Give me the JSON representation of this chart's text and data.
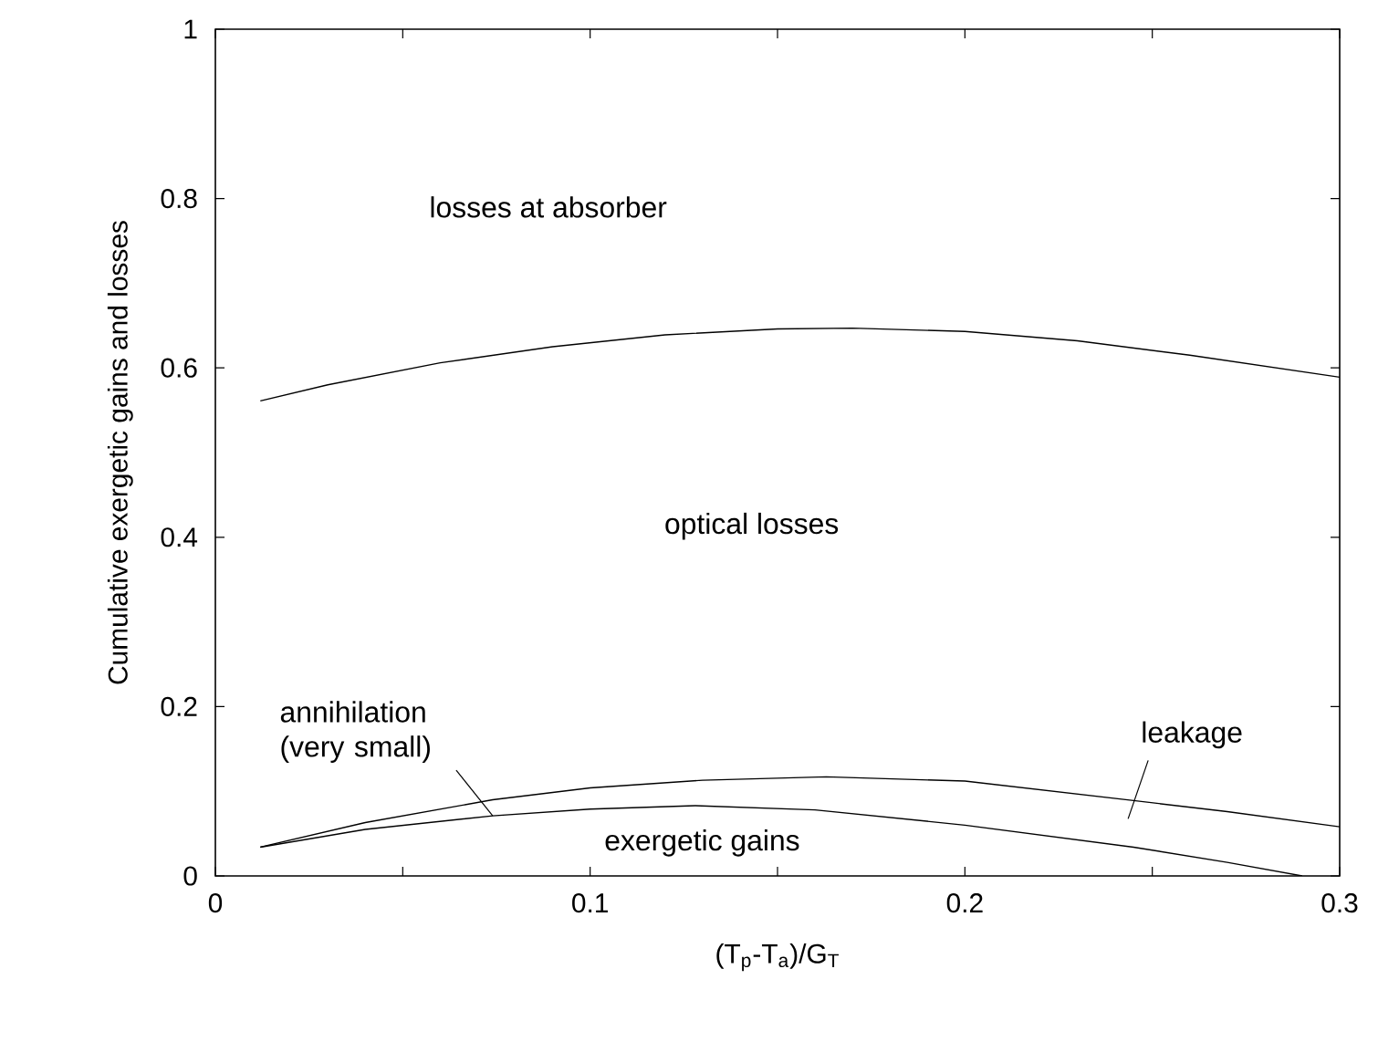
{
  "chart_data": {
    "type": "line",
    "xlabel": "(T$_{p}$-T$_{a}$)/G$_{T}$",
    "ylabel": "Cumulative exergetic gains and losses",
    "xlim": [
      0,
      0.3
    ],
    "ylim": [
      0,
      1
    ],
    "xticks": [
      0,
      {
        "value": 0.05,
        "label": null
      },
      0.1,
      {
        "value": 0.15,
        "label": null
      },
      0.2,
      {
        "value": 0.25,
        "label": null
      },
      0.3
    ],
    "yticks": [
      0,
      0.2,
      0.4,
      0.6,
      0.8,
      1
    ],
    "marker": "none",
    "line_style": "solid",
    "grid": false,
    "series": [
      {
        "color": "#000000",
        "x": [
          0.012,
          0.03,
          0.06,
          0.09,
          0.12,
          0.15,
          0.17,
          0.2,
          0.23,
          0.26,
          0.3
        ],
        "values": [
          0.561,
          0.58,
          0.606,
          0.625,
          0.639,
          0.646,
          0.647,
          0.643,
          0.632,
          0.615,
          0.589
        ]
      },
      {
        "color": "#000000",
        "x": [
          0.012,
          0.04,
          0.074,
          0.1,
          0.13,
          0.163,
          0.2,
          0.245,
          0.27,
          0.3
        ],
        "values": [
          0.034,
          0.063,
          0.09,
          0.104,
          0.113,
          0.117,
          0.112,
          0.089,
          0.076,
          0.058
        ]
      },
      {
        "color": "#000000",
        "x": [
          0.012,
          0.04,
          0.074,
          0.1,
          0.128,
          0.16,
          0.2,
          0.245,
          0.27,
          0.29
        ],
        "values": [
          0.034,
          0.055,
          0.071,
          0.079,
          0.083,
          0.078,
          0.06,
          0.034,
          0.016,
          0
        ]
      }
    ],
    "annotations": [
      "losses at absorber",
      "optical losses",
      "exergetic gains",
      {
        "text": "annihilation (very small)",
        "x": 0.074,
        "y": 0.071
      },
      {
        "text": "leakage",
        "x": 0.245,
        "y": 0.089
      }
    ]
  }
}
